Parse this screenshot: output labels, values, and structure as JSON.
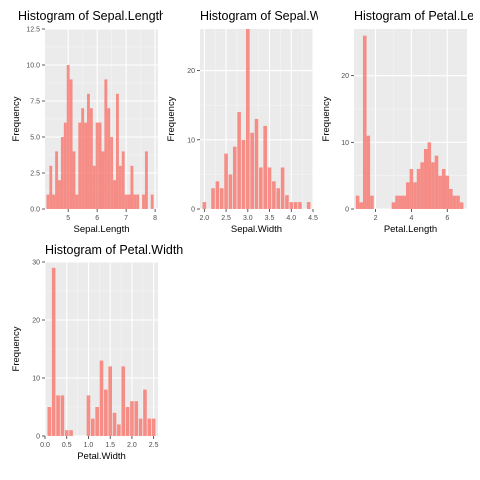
{
  "chart_data": [
    {
      "type": "bar",
      "title": "Histogram of Sepal.Length",
      "xlabel": "Sepal.Length",
      "ylabel": "Frequency",
      "fill": "#F8766D",
      "grid": true,
      "xlim": [
        4.2,
        8.1
      ],
      "ylim": [
        0,
        12.5
      ],
      "xticks": [
        5,
        6,
        7,
        8
      ],
      "yticks": [
        0.0,
        2.5,
        5.0,
        7.5,
        10.0,
        12.5
      ],
      "ytick_labels": [
        "0.0",
        "2.5",
        "5.0",
        "7.5",
        "10.0",
        "12.5"
      ],
      "bin_width": 0.1,
      "bins_x": [
        4.3,
        4.4,
        4.5,
        4.6,
        4.7,
        4.8,
        4.9,
        5.0,
        5.1,
        5.2,
        5.3,
        5.4,
        5.5,
        5.6,
        5.7,
        5.8,
        5.9,
        6.0,
        6.1,
        6.2,
        6.3,
        6.4,
        6.5,
        6.6,
        6.7,
        6.8,
        6.9,
        7.0,
        7.1,
        7.2,
        7.3,
        7.4,
        7.6,
        7.7,
        7.9
      ],
      "values": [
        1,
        3,
        1,
        4,
        2,
        5,
        6,
        10,
        9,
        4,
        1,
        6,
        7,
        6,
        8,
        7,
        3,
        6,
        6,
        4,
        9,
        7,
        5,
        2,
        8,
        3,
        4,
        1,
        1,
        3,
        1,
        1,
        1,
        4,
        1
      ]
    },
    {
      "type": "bar",
      "title": "Histogram of Sepal.Width",
      "xlabel": "Sepal.Width",
      "ylabel": "Frequency",
      "fill": "#F8766D",
      "grid": true,
      "xlim": [
        1.9,
        4.5
      ],
      "ylim": [
        0,
        26
      ],
      "xticks": [
        2.0,
        2.5,
        3.0,
        3.5,
        4.0,
        4.5
      ],
      "xtick_labels": [
        "2.0",
        "2.5",
        "3.0",
        "3.5",
        "4.0",
        "4.5"
      ],
      "yticks": [
        0,
        10,
        20
      ],
      "bin_width": 0.0833,
      "bins_x": [
        2.0,
        2.2,
        2.3,
        2.4,
        2.5,
        2.6,
        2.7,
        2.8,
        2.9,
        3.0,
        3.1,
        3.2,
        3.3,
        3.4,
        3.5,
        3.6,
        3.7,
        3.8,
        3.9,
        4.0,
        4.1,
        4.2,
        4.4
      ],
      "values": [
        1,
        3,
        4,
        3,
        8,
        5,
        9,
        14,
        10,
        26,
        11,
        13,
        6,
        12,
        6,
        4,
        3,
        6,
        2,
        1,
        1,
        1,
        1
      ]
    },
    {
      "type": "bar",
      "title": "Histogram of Petal.Length",
      "xlabel": "Petal.Length",
      "ylabel": "Frequency",
      "fill": "#F8766D",
      "grid": true,
      "xlim": [
        0.8,
        7.1
      ],
      "ylim": [
        0,
        27
      ],
      "xticks": [
        2,
        4,
        6
      ],
      "yticks": [
        0,
        10,
        20
      ],
      "bin_width": 0.2,
      "bins_x": [
        1.0,
        1.2,
        1.4,
        1.6,
        1.8,
        3.0,
        3.2,
        3.4,
        3.6,
        3.8,
        4.0,
        4.2,
        4.4,
        4.6,
        4.8,
        5.0,
        5.2,
        5.4,
        5.6,
        5.8,
        6.0,
        6.2,
        6.4,
        6.6,
        6.8
      ],
      "values": [
        2,
        1,
        26,
        11,
        2,
        1,
        2,
        2,
        2,
        4,
        6,
        4,
        6,
        7,
        9,
        10,
        7,
        8,
        5,
        6,
        5,
        3,
        2,
        2,
        1
      ]
    },
    {
      "type": "bar",
      "title": "Histogram of Petal.Width",
      "xlabel": "Petal.Width",
      "ylabel": "Frequency",
      "fill": "#F8766D",
      "grid": true,
      "xlim": [
        0.0,
        2.6
      ],
      "ylim": [
        0,
        30
      ],
      "xticks": [
        0.0,
        0.5,
        1.0,
        1.5,
        2.0,
        2.5
      ],
      "xtick_labels": [
        "0.0",
        "0.5",
        "1.0",
        "1.5",
        "2.0",
        "2.5"
      ],
      "yticks": [
        0,
        10,
        20,
        30
      ],
      "bin_width": 0.0833,
      "bins_x": [
        0.1,
        0.2,
        0.3,
        0.4,
        0.5,
        0.6,
        1.0,
        1.1,
        1.2,
        1.3,
        1.4,
        1.5,
        1.6,
        1.7,
        1.8,
        1.9,
        2.0,
        2.1,
        2.2,
        2.3,
        2.4,
        2.5
      ],
      "values": [
        5,
        29,
        7,
        7,
        1,
        1,
        7,
        3,
        5,
        13,
        8,
        12,
        4,
        2,
        12,
        5,
        6,
        6,
        3,
        8,
        3,
        3
      ]
    }
  ]
}
